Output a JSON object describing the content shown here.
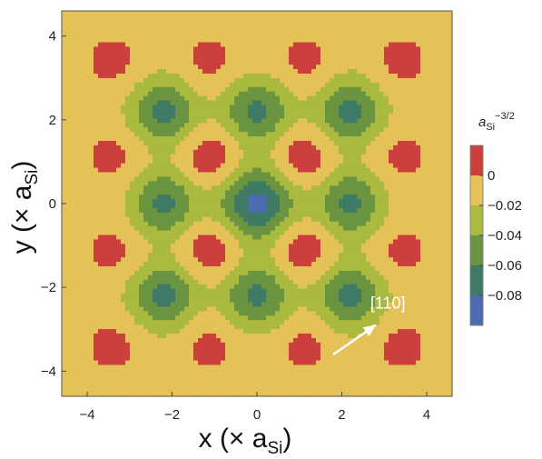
{
  "chart_data": {
    "type": "heatmap",
    "subtype": "filled-contour",
    "xlabel": {
      "main": "x (× a",
      "sub": "Si",
      "close": ")"
    },
    "ylabel": {
      "main": "y (× a",
      "sub": "Si",
      "close": ")"
    },
    "xlim": [
      -4.6,
      4.6
    ],
    "ylim": [
      -4.6,
      4.6
    ],
    "xticks": [
      -4,
      -2,
      0,
      2,
      4
    ],
    "yticks": [
      -4,
      -2,
      0,
      2,
      4
    ],
    "xtick_labels": [
      "−4",
      "−2",
      "0",
      "2",
      "4"
    ],
    "ytick_labels": [
      "−4",
      "−2",
      "0",
      "2",
      "4"
    ],
    "grid": false,
    "colorbar": {
      "title": {
        "main": "a",
        "sub": "Si",
        "sup": "−3/2"
      },
      "range": [
        -0.1,
        0.02
      ],
      "levels": [
        {
          "from": -0.1,
          "to": -0.08,
          "color": "#4d6bb0"
        },
        {
          "from": -0.08,
          "to": -0.06,
          "color": "#3f7a64"
        },
        {
          "from": -0.06,
          "to": -0.04,
          "color": "#6b9440"
        },
        {
          "from": -0.04,
          "to": -0.02,
          "color": "#a9ba3f"
        },
        {
          "from": -0.02,
          "to": 0,
          "color": "#e5c258"
        },
        {
          "from": 0,
          "to": 0.02,
          "color": "#cc3f3c"
        }
      ],
      "tick_values": [
        0,
        -0.02,
        -0.04,
        -0.06,
        -0.08
      ],
      "tick_labels": [
        "0",
        "−0.02",
        "−0.04",
        "−0.06",
        "−0.08"
      ]
    },
    "features": {
      "global_minimum": {
        "x": 0,
        "y": 0,
        "value": -0.095
      },
      "maxima_inner": [
        {
          "x": -1.1,
          "y": 1.1,
          "value": 0.016
        },
        {
          "x": 1.1,
          "y": 1.1,
          "value": 0.016
        },
        {
          "x": -1.1,
          "y": -1.1,
          "value": 0.016
        },
        {
          "x": 1.1,
          "y": -1.1,
          "value": 0.016
        }
      ],
      "maxima_outer": [
        {
          "x": -3.4,
          "y": 3.4
        },
        {
          "x": -1.1,
          "y": 3.4
        },
        {
          "x": 1.1,
          "y": 3.4
        },
        {
          "x": 3.4,
          "y": 3.4
        },
        {
          "x": -3.4,
          "y": 1.1
        },
        {
          "x": 3.4,
          "y": 1.1
        },
        {
          "x": -3.4,
          "y": -1.1
        },
        {
          "x": 3.4,
          "y": -1.1
        },
        {
          "x": -3.4,
          "y": -3.4
        },
        {
          "x": -1.1,
          "y": -3.4
        },
        {
          "x": 1.1,
          "y": -3.4
        },
        {
          "x": 3.4,
          "y": -3.4
        }
      ],
      "minima": [
        {
          "x": 0,
          "y": 2.2
        },
        {
          "x": 0,
          "y": -2.2
        },
        {
          "x": -2.2,
          "y": 0
        },
        {
          "x": 2.2,
          "y": 0
        },
        {
          "x": -2.2,
          "y": 2.2
        },
        {
          "x": 2.2,
          "y": 2.2
        },
        {
          "x": -2.2,
          "y": -2.2
        },
        {
          "x": 2.2,
          "y": -2.2
        }
      ]
    },
    "annotations": [
      {
        "text": "[110]",
        "arrow_from": [
          1.8,
          -3.6
        ],
        "arrow_to": [
          2.8,
          -2.9
        ],
        "color": "#ffffff"
      }
    ]
  }
}
